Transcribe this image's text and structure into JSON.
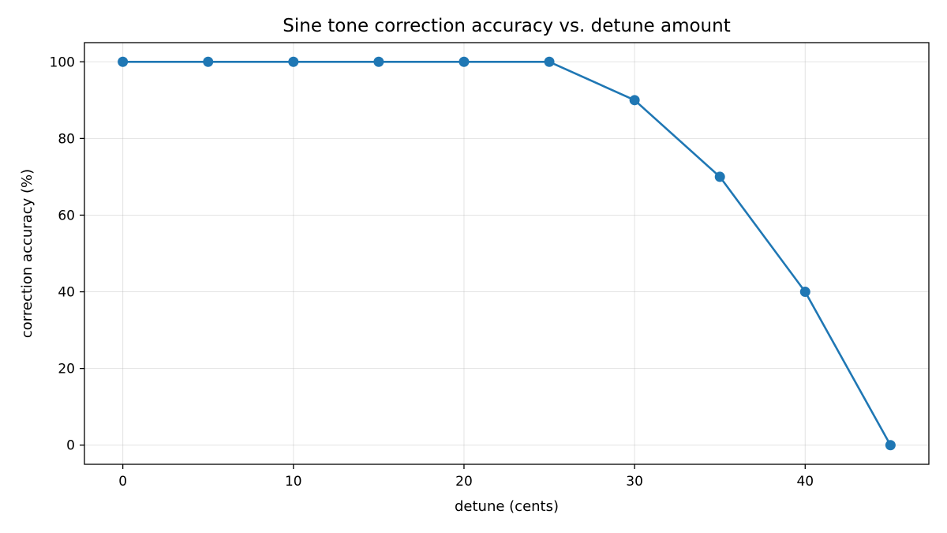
{
  "chart_data": {
    "type": "line",
    "title": "Sine tone correction accuracy vs. detune amount",
    "xlabel": "detune (cents)",
    "ylabel": "correction accuracy (%)",
    "x": [
      0,
      5,
      10,
      15,
      20,
      25,
      30,
      35,
      40,
      45
    ],
    "series": [
      {
        "values": [
          100,
          100,
          100,
          100,
          100,
          100,
          90,
          70,
          40,
          0
        ],
        "color": "#1f77b4",
        "marker": "circle"
      }
    ],
    "xlim": [
      -2.25,
      47.25
    ],
    "ylim": [
      -5,
      105
    ],
    "xticks": [
      0,
      10,
      20,
      30,
      40
    ],
    "yticks": [
      0,
      20,
      40,
      60,
      80,
      100
    ],
    "grid": true,
    "legend": "none"
  }
}
